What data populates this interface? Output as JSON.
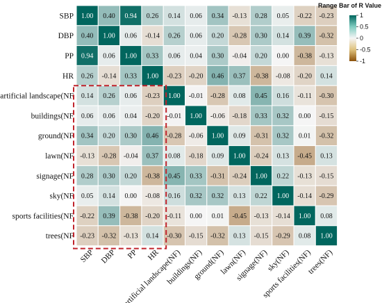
{
  "chart_data": {
    "type": "heatmap",
    "title": "",
    "legend_title": "Range Bar of R Value",
    "legend_ticks": [
      "1",
      "0.5",
      "0",
      "-0.5",
      "-1"
    ],
    "legend_tick_values": [
      1,
      0.5,
      0,
      -0.5,
      -1
    ],
    "value_range": [
      -1,
      1
    ],
    "colors": {
      "positive": "#01665e",
      "zero": "#f5f5f5",
      "negative": "#8c510a",
      "highlight_box": "#c0232b"
    },
    "labels": [
      "SBP",
      "DBP",
      "PP",
      "HR",
      "artificial landscape(NF)",
      "buildings(NF)",
      "ground(NF)",
      "lawn(NF)",
      "signage(NF)",
      "sky(NF)",
      "sports facilities(NF)",
      "trees(NF)"
    ],
    "row_labels": [
      "SBP",
      "DBP",
      "PP",
      "HR",
      "artificial landscape(NF",
      "buildings(NF",
      "ground(NF",
      "lawn(NF",
      "signage(NF",
      "sky(NF",
      "sports facilities(NF",
      "trees(NF"
    ],
    "col_labels": [
      "SBP",
      "DBP",
      "PP",
      "HR",
      "artificial landscape(NF)",
      "buildings(NF)",
      "ground(NF)",
      "lawn(NF)",
      "signage(NF)",
      "sky(NF)",
      "sports facilities(NF)",
      "trees(NF)"
    ],
    "values": [
      [
        "1.00",
        "0.40",
        "0.94",
        "0.26",
        "0.14",
        "0.06",
        "0.34",
        "-0.13",
        "0.28",
        "0.05",
        "-0.22",
        "-0.23"
      ],
      [
        "0.40",
        "1.00",
        "0.06",
        "-0.14",
        "0.26",
        "0.06",
        "0.20",
        "-0.28",
        "0.30",
        "0.14",
        "0.39",
        "-0.32"
      ],
      [
        "0.94",
        "0.06",
        "1.00",
        "0.33",
        "0.06",
        "0.04",
        "0.30",
        "-0.04",
        "0.20",
        "0.00",
        "-0.38",
        "-0.13"
      ],
      [
        "0.26",
        "-0.14",
        "0.33",
        "1.00",
        "-0.23",
        "-0.20",
        "0.46",
        "0.37",
        "-0.38",
        "-0.08",
        "-0.20",
        "0.14"
      ],
      [
        "0.14",
        "0.26",
        "0.06",
        "-0.23",
        "1.00",
        "-0.01",
        "-0.28",
        "0.08",
        "0.45",
        "0.16",
        "-0.11",
        "-0.30"
      ],
      [
        "0.06",
        "0.06",
        "0.04",
        "-0.20",
        "-0.01",
        "1.00",
        "-0.06",
        "-0.18",
        "0.33",
        "0.32",
        "0.00",
        "-0.15"
      ],
      [
        "0.34",
        "0.20",
        "0.30",
        "0.46",
        "-0.28",
        "-0.06",
        "1.00",
        "0.09",
        "-0.31",
        "0.32",
        "0.01",
        "-0.32"
      ],
      [
        "-0.13",
        "-0.28",
        "-0.04",
        "0.37",
        "0.08",
        "-0.18",
        "0.09",
        "1.00",
        "-0.24",
        "0.13",
        "-0.45",
        "0.13"
      ],
      [
        "0.28",
        "0.30",
        "0.20",
        "-0.38",
        "0.45",
        "0.33",
        "-0.31",
        "-0.24",
        "1.00",
        "0.22",
        "-0.13",
        "-0.15"
      ],
      [
        "0.05",
        "0.14",
        "0.00",
        "-0.08",
        "0.16",
        "0.32",
        "0.32",
        "0.13",
        "0.22",
        "1.00",
        "-0.14",
        "-0.29"
      ],
      [
        "-0.22",
        "0.39",
        "-0.38",
        "-0.20",
        "-0.11",
        "0.00",
        "0.01",
        "-0.45",
        "-0.13",
        "-0.14",
        "1.00",
        "0.08"
      ],
      [
        "-0.23",
        "-0.32",
        "-0.13",
        "0.14",
        "-0.30",
        "-0.15",
        "-0.32",
        "0.13",
        "-0.15",
        "-0.29",
        "0.08",
        "1.00"
      ]
    ],
    "highlight": {
      "rows": "artificial landscape(NF) to trees(NF)",
      "cols": "SBP to HR",
      "style": "dashed"
    },
    "grid": true
  }
}
